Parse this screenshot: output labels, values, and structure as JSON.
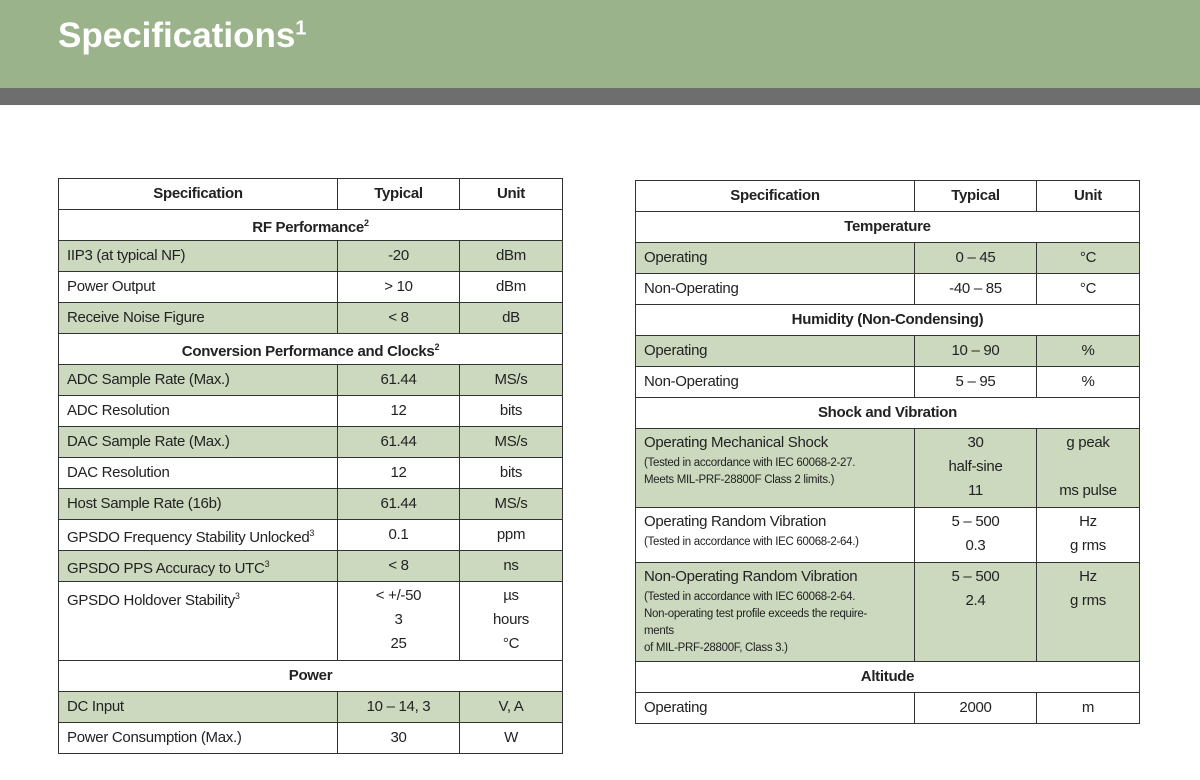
{
  "header": {
    "title": "Specifications",
    "title_sup": "1"
  },
  "tables": [
    {
      "columns": [
        "Specification",
        "Typical",
        "Unit"
      ],
      "rows": [
        {
          "section": "RF Performance",
          "sup": "2"
        },
        {
          "spec": "IIP3 (at typical NF)",
          "typical": "-20",
          "unit": "dBm",
          "shaded": true
        },
        {
          "spec": "Power Output",
          "typical": "> 10",
          "unit": "dBm",
          "shaded": false
        },
        {
          "spec": "Receive Noise Figure",
          "typical": "< 8",
          "unit": "dB",
          "shaded": true
        },
        {
          "section": "Conversion Performance and Clocks",
          "sup": "2"
        },
        {
          "spec": "ADC Sample Rate (Max.)",
          "typical": "61.44",
          "unit": "MS/s",
          "shaded": true
        },
        {
          "spec": "ADC Resolution",
          "typical": "12",
          "unit": "bits",
          "shaded": false
        },
        {
          "spec": "DAC Sample Rate (Max.)",
          "typical": "61.44",
          "unit": "MS/s",
          "shaded": true
        },
        {
          "spec": "DAC Resolution",
          "typical": "12",
          "unit": "bits",
          "shaded": false
        },
        {
          "spec": "Host Sample Rate (16b)",
          "typical": "61.44",
          "unit": "MS/s",
          "shaded": true
        },
        {
          "spec": "GPSDO Frequency Stability Unlocked",
          "spec_sup": "3",
          "typical": "0.1",
          "unit": "ppm",
          "shaded": false
        },
        {
          "spec": "GPSDO PPS Accuracy to UTC",
          "spec_sup": "3",
          "typical": "< 8",
          "unit": "ns",
          "shaded": true
        },
        {
          "spec": "GPSDO Holdover Stability",
          "spec_sup": "3",
          "typical": [
            "< +/-50",
            "3",
            "25"
          ],
          "unit": [
            "µs",
            "hours",
            "°C"
          ],
          "shaded": false
        },
        {
          "section": "Power"
        },
        {
          "spec": "DC Input",
          "typical": "10 – 14, 3",
          "unit": "V, A",
          "shaded": true
        },
        {
          "spec": "Power Consumption (Max.)",
          "typical": "30",
          "unit": "W",
          "shaded": false
        }
      ]
    },
    {
      "columns": [
        "Specification",
        "Typical",
        "Unit"
      ],
      "rows": [
        {
          "section": "Temperature"
        },
        {
          "spec": "Operating",
          "typical": "0 – 45",
          "unit": "°C",
          "shaded": true
        },
        {
          "spec": "Non-Operating",
          "typical": "-40 – 85",
          "unit": "°C",
          "shaded": false
        },
        {
          "section": "Humidity (Non-Condensing)"
        },
        {
          "spec": "Operating",
          "typical": "10 – 90",
          "unit": "%",
          "shaded": true
        },
        {
          "spec": "Non-Operating",
          "typical": "5 – 95",
          "unit": "%",
          "shaded": false
        },
        {
          "section": "Shock and Vibration"
        },
        {
          "spec": "Operating Mechanical Shock",
          "note": [
            "(Tested in accordance with IEC 60068-2-27.",
            "Meets MIL-PRF-28800F Class 2 limits.)"
          ],
          "typical": [
            "30",
            "half-sine",
            "11"
          ],
          "unit": [
            "g peak",
            "ms pulse"
          ],
          "shaded": true
        },
        {
          "spec": "Operating Random Vibration",
          "note": [
            "(Tested in accordance with IEC 60068-2-64.)"
          ],
          "typical": [
            "5 – 500",
            "0.3"
          ],
          "unit": [
            "Hz",
            "g rms"
          ],
          "shaded": false
        },
        {
          "spec": "Non-Operating Random Vibration",
          "note": [
            "(Tested in accordance with IEC 60068-2-64.",
            "Non-operating test profile exceeds the require-",
            "ments",
            "of MIL-PRF-28800F, Class 3.)"
          ],
          "typical": [
            "5 – 500",
            "2.4"
          ],
          "unit": [
            "Hz",
            "g rms"
          ],
          "shaded": true
        },
        {
          "section": "Altitude"
        },
        {
          "spec": "Operating",
          "typical": "2000",
          "unit": "m",
          "shaded": false
        }
      ]
    }
  ]
}
